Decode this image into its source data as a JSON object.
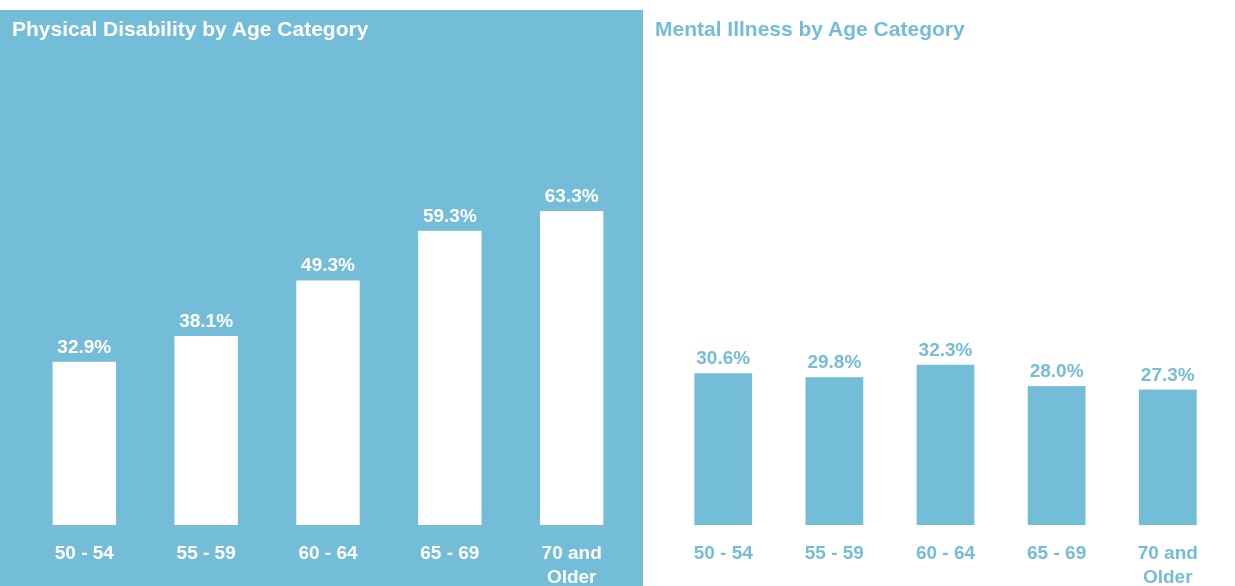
{
  "chart_data": [
    {
      "type": "bar",
      "title": "Physical Disability by Age Category",
      "categories": [
        "50 - 54",
        "55 - 59",
        "60 - 64",
        "65 - 69",
        "70 and Older"
      ],
      "values": [
        32.9,
        38.1,
        49.3,
        59.3,
        63.3
      ],
      "color": "#ffffff",
      "value_labels": [
        "32.9%",
        "38.1%",
        "49.3%",
        "59.3%",
        "63.3%"
      ]
    },
    {
      "type": "bar",
      "title": "Mental Illness by Age Category",
      "categories": [
        "50 - 54",
        "55 - 59",
        "60 - 64",
        "65 - 69",
        "70 and Older"
      ],
      "values": [
        30.6,
        29.8,
        32.3,
        28.0,
        27.3
      ],
      "color": "#74bdd8",
      "value_labels": [
        "30.6%",
        "29.8%",
        "32.3%",
        "28.0%",
        "27.3%"
      ]
    }
  ]
}
